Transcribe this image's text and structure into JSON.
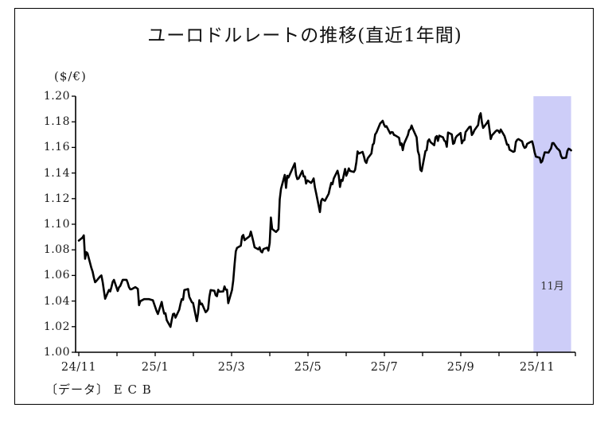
{
  "title": "ユーロドルレートの推移(直近1年間)",
  "unit_label": "($/€)",
  "source_note": "〔データ〕 E C B",
  "colors": {
    "line": "#000000",
    "axis": "#000000",
    "text": "#1a1a1a",
    "highlight_band": "#cdcdf8",
    "background": "#ffffff"
  },
  "chart_data": {
    "type": "line",
    "title": "ユーロドルレートの推移(直近1年間)",
    "ylabel": "($/€)",
    "ylim": [
      1.0,
      1.2
    ],
    "ytick_step": 0.02,
    "y_tick_labels": [
      "1.20",
      "1.18",
      "1.16",
      "1.14",
      "1.12",
      "1.10",
      "1.08",
      "1.06",
      "1.04",
      "1.02",
      "1.00"
    ],
    "x_tick_labels": [
      "24/11",
      "25/1",
      "25/3",
      "25/5",
      "25/7",
      "25/9",
      "25/11"
    ],
    "x_axis_note": "monthly ticks from 2024-11 to 2025-11, x unit = days since 2024-11-01",
    "grid": false,
    "legend": "none",
    "source": "ECB",
    "annotations": [
      {
        "type": "vspan",
        "label": "11月",
        "from_day": 362,
        "to_day": 392,
        "color": "#cdcdf8"
      }
    ],
    "series": [
      {
        "name": "EUR/USD ($/€)",
        "color": "#000000",
        "points": [
          [
            0,
            1.0872
          ],
          [
            3,
            1.0896
          ],
          [
            4,
            1.0913
          ],
          [
            5,
            1.073
          ],
          [
            6,
            1.0782
          ],
          [
            7,
            1.0772
          ],
          [
            10,
            1.0659
          ],
          [
            11,
            1.0629
          ],
          [
            12,
            1.0585
          ],
          [
            13,
            1.0547
          ],
          [
            14,
            1.0557
          ],
          [
            17,
            1.0592
          ],
          [
            18,
            1.06
          ],
          [
            19,
            1.0549
          ],
          [
            20,
            1.048
          ],
          [
            21,
            1.0418
          ],
          [
            24,
            1.0487
          ],
          [
            25,
            1.0475
          ],
          [
            26,
            1.0508
          ],
          [
            27,
            1.055
          ],
          [
            28,
            1.0565
          ],
          [
            31,
            1.0479
          ],
          [
            32,
            1.0507
          ],
          [
            33,
            1.0518
          ],
          [
            34,
            1.0543
          ],
          [
            35,
            1.0566
          ],
          [
            38,
            1.0566
          ],
          [
            39,
            1.0542
          ],
          [
            40,
            1.0508
          ],
          [
            41,
            1.0492
          ],
          [
            42,
            1.0492
          ],
          [
            45,
            1.0509
          ],
          [
            46,
            1.0502
          ],
          [
            47,
            1.0495
          ],
          [
            48,
            1.0368
          ],
          [
            49,
            1.0399
          ],
          [
            52,
            1.0415
          ],
          [
            56,
            1.0415
          ],
          [
            59,
            1.0406
          ],
          [
            62,
            1.0321
          ],
          [
            63,
            1.0299
          ],
          [
            66,
            1.0393
          ],
          [
            67,
            1.0343
          ],
          [
            68,
            1.0302
          ],
          [
            69,
            1.0305
          ],
          [
            70,
            1.0251
          ],
          [
            73,
            1.0198
          ],
          [
            74,
            1.0252
          ],
          [
            75,
            1.0298
          ],
          [
            76,
            1.0301
          ],
          [
            77,
            1.027
          ],
          [
            80,
            1.0332
          ],
          [
            81,
            1.0379
          ],
          [
            82,
            1.0415
          ],
          [
            83,
            1.041
          ],
          [
            84,
            1.0486
          ],
          [
            87,
            1.0494
          ],
          [
            88,
            1.0432
          ],
          [
            89,
            1.0413
          ],
          [
            90,
            1.0391
          ],
          [
            91,
            1.0385
          ],
          [
            94,
            1.0243
          ],
          [
            95,
            1.0305
          ],
          [
            96,
            1.0406
          ],
          [
            97,
            1.0375
          ],
          [
            98,
            1.038
          ],
          [
            101,
            1.0313
          ],
          [
            102,
            1.0322
          ],
          [
            103,
            1.0338
          ],
          [
            104,
            1.0433
          ],
          [
            105,
            1.0486
          ],
          [
            108,
            1.048
          ],
          [
            109,
            1.0446
          ],
          [
            110,
            1.0438
          ],
          [
            111,
            1.0488
          ],
          [
            112,
            1.0473
          ],
          [
            115,
            1.0475
          ],
          [
            116,
            1.0514
          ],
          [
            117,
            1.0489
          ],
          [
            118,
            1.0489
          ],
          [
            119,
            1.0383
          ],
          [
            122,
            1.0486
          ],
          [
            123,
            1.0561
          ],
          [
            124,
            1.0683
          ],
          [
            125,
            1.0789
          ],
          [
            126,
            1.0815
          ],
          [
            129,
            1.0832
          ],
          [
            130,
            1.0905
          ],
          [
            131,
            1.0916
          ],
          [
            132,
            1.0875
          ],
          [
            133,
            1.0884
          ],
          [
            136,
            1.0906
          ],
          [
            137,
            1.0943
          ],
          [
            138,
            1.0904
          ],
          [
            139,
            1.0862
          ],
          [
            140,
            1.082
          ],
          [
            143,
            1.0804
          ],
          [
            144,
            1.082
          ],
          [
            145,
            1.0788
          ],
          [
            146,
            1.078
          ],
          [
            147,
            1.0806
          ],
          [
            150,
            1.0817
          ],
          [
            151,
            1.0794
          ],
          [
            152,
            1.0854
          ],
          [
            153,
            1.1052
          ],
          [
            154,
            1.0963
          ],
          [
            157,
            1.094
          ],
          [
            158,
            1.095
          ],
          [
            159,
            1.0961
          ],
          [
            160,
            1.1195
          ],
          [
            161,
            1.1277
          ],
          [
            164,
            1.1385
          ],
          [
            165,
            1.1284
          ],
          [
            166,
            1.1378
          ],
          [
            167,
            1.1365
          ],
          [
            172,
            1.1476
          ],
          [
            173,
            1.1386
          ],
          [
            174,
            1.1353
          ],
          [
            175,
            1.1357
          ],
          [
            178,
            1.1417
          ],
          [
            179,
            1.1373
          ],
          [
            180,
            1.1373
          ],
          [
            181,
            1.1318
          ],
          [
            182,
            1.1343
          ],
          [
            185,
            1.1323
          ],
          [
            186,
            1.1338
          ],
          [
            187,
            1.1358
          ],
          [
            188,
            1.1288
          ],
          [
            189,
            1.1241
          ],
          [
            192,
            1.1095
          ],
          [
            193,
            1.1184
          ],
          [
            194,
            1.1199
          ],
          [
            195,
            1.1188
          ],
          [
            196,
            1.1183
          ],
          [
            199,
            1.1238
          ],
          [
            200,
            1.1283
          ],
          [
            201,
            1.1323
          ],
          [
            202,
            1.1313
          ],
          [
            203,
            1.1358
          ],
          [
            206,
            1.1418
          ],
          [
            207,
            1.1377
          ],
          [
            208,
            1.1291
          ],
          [
            209,
            1.1346
          ],
          [
            210,
            1.1339
          ],
          [
            212,
            1.1432
          ],
          [
            213,
            1.1379
          ],
          [
            214,
            1.1403
          ],
          [
            215,
            1.1436
          ],
          [
            216,
            1.1416
          ],
          [
            219,
            1.1408
          ],
          [
            220,
            1.1425
          ],
          [
            221,
            1.1486
          ],
          [
            222,
            1.1569
          ],
          [
            223,
            1.1552
          ],
          [
            226,
            1.1565
          ],
          [
            227,
            1.1533
          ],
          [
            228,
            1.1492
          ],
          [
            229,
            1.1479
          ],
          [
            230,
            1.1514
          ],
          [
            233,
            1.1553
          ],
          [
            234,
            1.162
          ],
          [
            235,
            1.1632
          ],
          [
            236,
            1.1701
          ],
          [
            237,
            1.1716
          ],
          [
            240,
            1.1787
          ],
          [
            242,
            1.1808
          ],
          [
            243,
            1.1778
          ],
          [
            244,
            1.1761
          ],
          [
            245,
            1.1766
          ],
          [
            248,
            1.1708
          ],
          [
            249,
            1.172
          ],
          [
            250,
            1.1718
          ],
          [
            251,
            1.1697
          ],
          [
            252,
            1.1694
          ],
          [
            255,
            1.1676
          ],
          [
            256,
            1.1619
          ],
          [
            257,
            1.1631
          ],
          [
            258,
            1.1579
          ],
          [
            259,
            1.1628
          ],
          [
            262,
            1.1696
          ],
          [
            263,
            1.1734
          ],
          [
            264,
            1.1742
          ],
          [
            265,
            1.1771
          ],
          [
            266,
            1.1744
          ],
          [
            269,
            1.1679
          ],
          [
            270,
            1.1571
          ],
          [
            271,
            1.1539
          ],
          [
            272,
            1.1426
          ],
          [
            273,
            1.1414
          ],
          [
            276,
            1.1572
          ],
          [
            277,
            1.1578
          ],
          [
            278,
            1.165
          ],
          [
            279,
            1.1663
          ],
          [
            280,
            1.1642
          ],
          [
            283,
            1.1617
          ],
          [
            284,
            1.1678
          ],
          [
            285,
            1.1689
          ],
          [
            286,
            1.1651
          ],
          [
            287,
            1.1692
          ],
          [
            290,
            1.1679
          ],
          [
            291,
            1.1654
          ],
          [
            292,
            1.1646
          ],
          [
            293,
            1.1605
          ],
          [
            294,
            1.1716
          ],
          [
            297,
            1.1702
          ],
          [
            298,
            1.1628
          ],
          [
            299,
            1.1635
          ],
          [
            300,
            1.1673
          ],
          [
            301,
            1.1689
          ],
          [
            304,
            1.1713
          ],
          [
            305,
            1.1632
          ],
          [
            306,
            1.1654
          ],
          [
            307,
            1.1657
          ],
          [
            308,
            1.172
          ],
          [
            311,
            1.176
          ],
          [
            312,
            1.1762
          ],
          [
            313,
            1.1697
          ],
          [
            314,
            1.1711
          ],
          [
            315,
            1.1735
          ],
          [
            318,
            1.1775
          ],
          [
            319,
            1.1845
          ],
          [
            320,
            1.1867
          ],
          [
            321,
            1.1793
          ],
          [
            322,
            1.1752
          ],
          [
            325,
            1.1792
          ],
          [
            326,
            1.1809
          ],
          [
            327,
            1.1742
          ],
          [
            328,
            1.1666
          ],
          [
            329,
            1.1694
          ],
          [
            332,
            1.1727
          ],
          [
            333,
            1.1734
          ],
          [
            334,
            1.173
          ],
          [
            335,
            1.1715
          ],
          [
            336,
            1.174
          ],
          [
            339,
            1.1688
          ],
          [
            340,
            1.1657
          ],
          [
            341,
            1.1622
          ],
          [
            342,
            1.1622
          ],
          [
            343,
            1.1582
          ],
          [
            346,
            1.1565
          ],
          [
            347,
            1.157
          ],
          [
            348,
            1.1642
          ],
          [
            349,
            1.1659
          ],
          [
            350,
            1.1665
          ],
          [
            353,
            1.1647
          ],
          [
            354,
            1.1615
          ],
          [
            355,
            1.1596
          ],
          [
            356,
            1.1602
          ],
          [
            357,
            1.1628
          ],
          [
            360,
            1.1644
          ],
          [
            361,
            1.1648
          ],
          [
            362,
            1.1608
          ],
          [
            363,
            1.1561
          ],
          [
            364,
            1.1528
          ],
          [
            367,
            1.1519
          ],
          [
            368,
            1.1482
          ],
          [
            369,
            1.1492
          ],
          [
            370,
            1.1527
          ],
          [
            371,
            1.1562
          ],
          [
            374,
            1.1559
          ],
          [
            375,
            1.1577
          ],
          [
            376,
            1.1592
          ],
          [
            377,
            1.1633
          ],
          [
            378,
            1.1634
          ],
          [
            381,
            1.1592
          ],
          [
            382,
            1.1584
          ],
          [
            383,
            1.1572
          ],
          [
            384,
            1.1533
          ],
          [
            385,
            1.1516
          ],
          [
            388,
            1.152
          ],
          [
            389,
            1.1572
          ],
          [
            390,
            1.159
          ],
          [
            391,
            1.1586
          ],
          [
            392,
            1.1577
          ]
        ]
      }
    ]
  }
}
